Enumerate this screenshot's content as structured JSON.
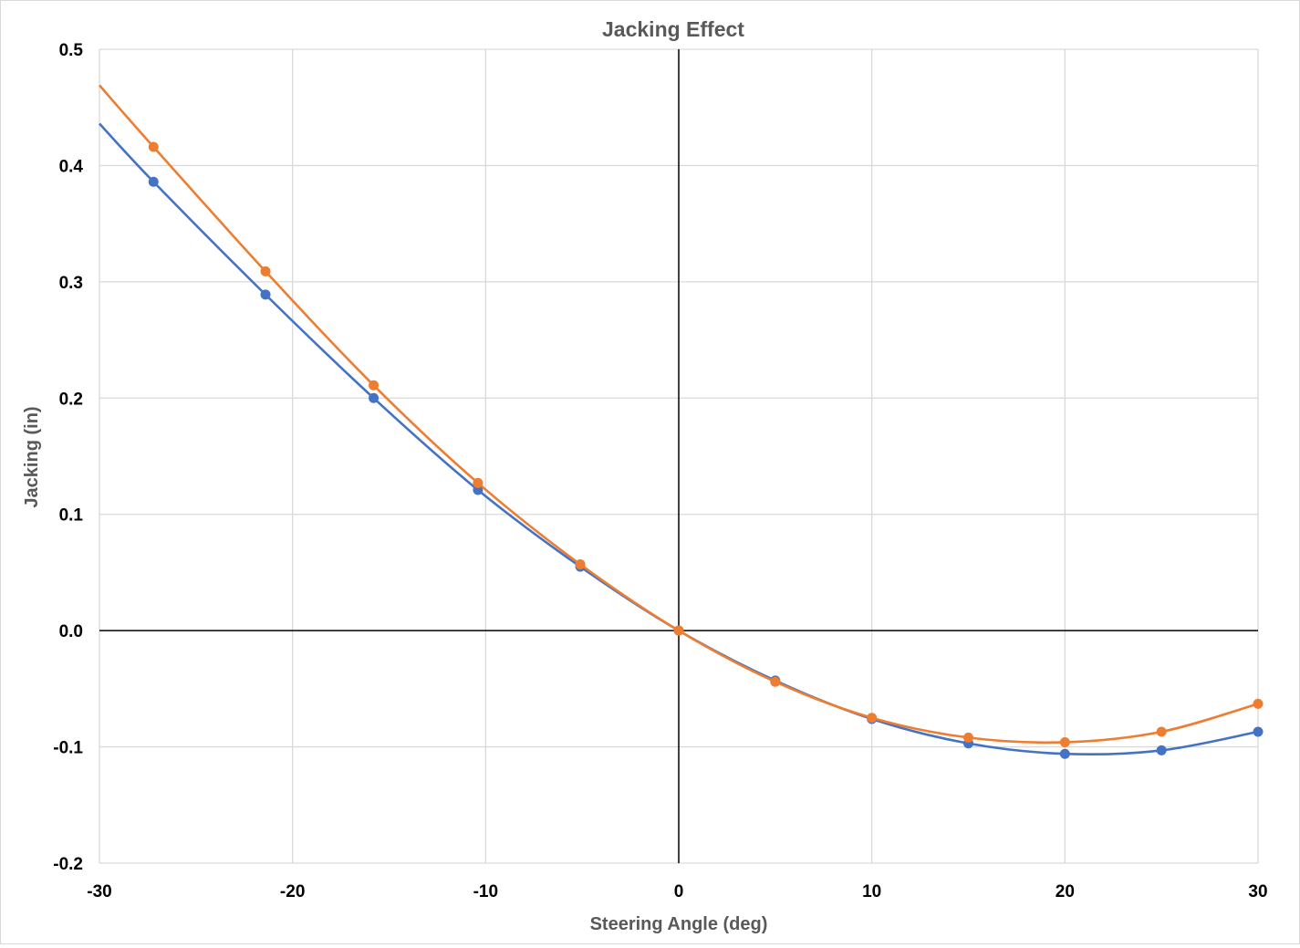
{
  "chart_data": {
    "type": "line",
    "title": "Jacking Effect",
    "xlabel": "Steering Angle (deg)",
    "ylabel": "Jacking (in)",
    "xlim": [
      -30,
      30
    ],
    "ylim": [
      -0.2,
      0.5
    ],
    "x_ticks": [
      "-30",
      "-20",
      "-10",
      "0",
      "10",
      "20",
      "30"
    ],
    "x_tick_values": [
      -30,
      -20,
      -10,
      0,
      10,
      20,
      30
    ],
    "y_ticks": [
      "-0.2",
      "-0.1",
      "0.0",
      "0.1",
      "0.2",
      "0.3",
      "0.4",
      "0.5"
    ],
    "y_tick_values": [
      -0.2,
      -0.1,
      0.0,
      0.1,
      0.2,
      0.3,
      0.4,
      0.5
    ],
    "grid": true,
    "legend": "none",
    "series": [
      {
        "color": "#4472c4",
        "points": [
          {
            "x": -27.2,
            "y": 0.386
          },
          {
            "x": -21.4,
            "y": 0.289
          },
          {
            "x": -15.8,
            "y": 0.2
          },
          {
            "x": -10.4,
            "y": 0.121
          },
          {
            "x": -5.1,
            "y": 0.055
          },
          {
            "x": 0,
            "y": 0.0
          },
          {
            "x": 5,
            "y": -0.043
          },
          {
            "x": 10,
            "y": -0.076
          },
          {
            "x": 15,
            "y": -0.097
          },
          {
            "x": 20,
            "y": -0.106
          },
          {
            "x": 25,
            "y": -0.103
          },
          {
            "x": 30,
            "y": -0.087
          }
        ],
        "line_start": {
          "x": -30,
          "y": 0.436
        }
      },
      {
        "color": "#ed7d31",
        "points": [
          {
            "x": -27.2,
            "y": 0.416
          },
          {
            "x": -21.4,
            "y": 0.309
          },
          {
            "x": -15.8,
            "y": 0.211
          },
          {
            "x": -10.4,
            "y": 0.127
          },
          {
            "x": -5.1,
            "y": 0.057
          },
          {
            "x": 0,
            "y": 0.0
          },
          {
            "x": 5,
            "y": -0.044
          },
          {
            "x": 10,
            "y": -0.075
          },
          {
            "x": 15,
            "y": -0.092
          },
          {
            "x": 20,
            "y": -0.096
          },
          {
            "x": 25,
            "y": -0.087
          },
          {
            "x": 30,
            "y": -0.063
          }
        ],
        "line_start": {
          "x": -30,
          "y": 0.469
        }
      }
    ]
  }
}
